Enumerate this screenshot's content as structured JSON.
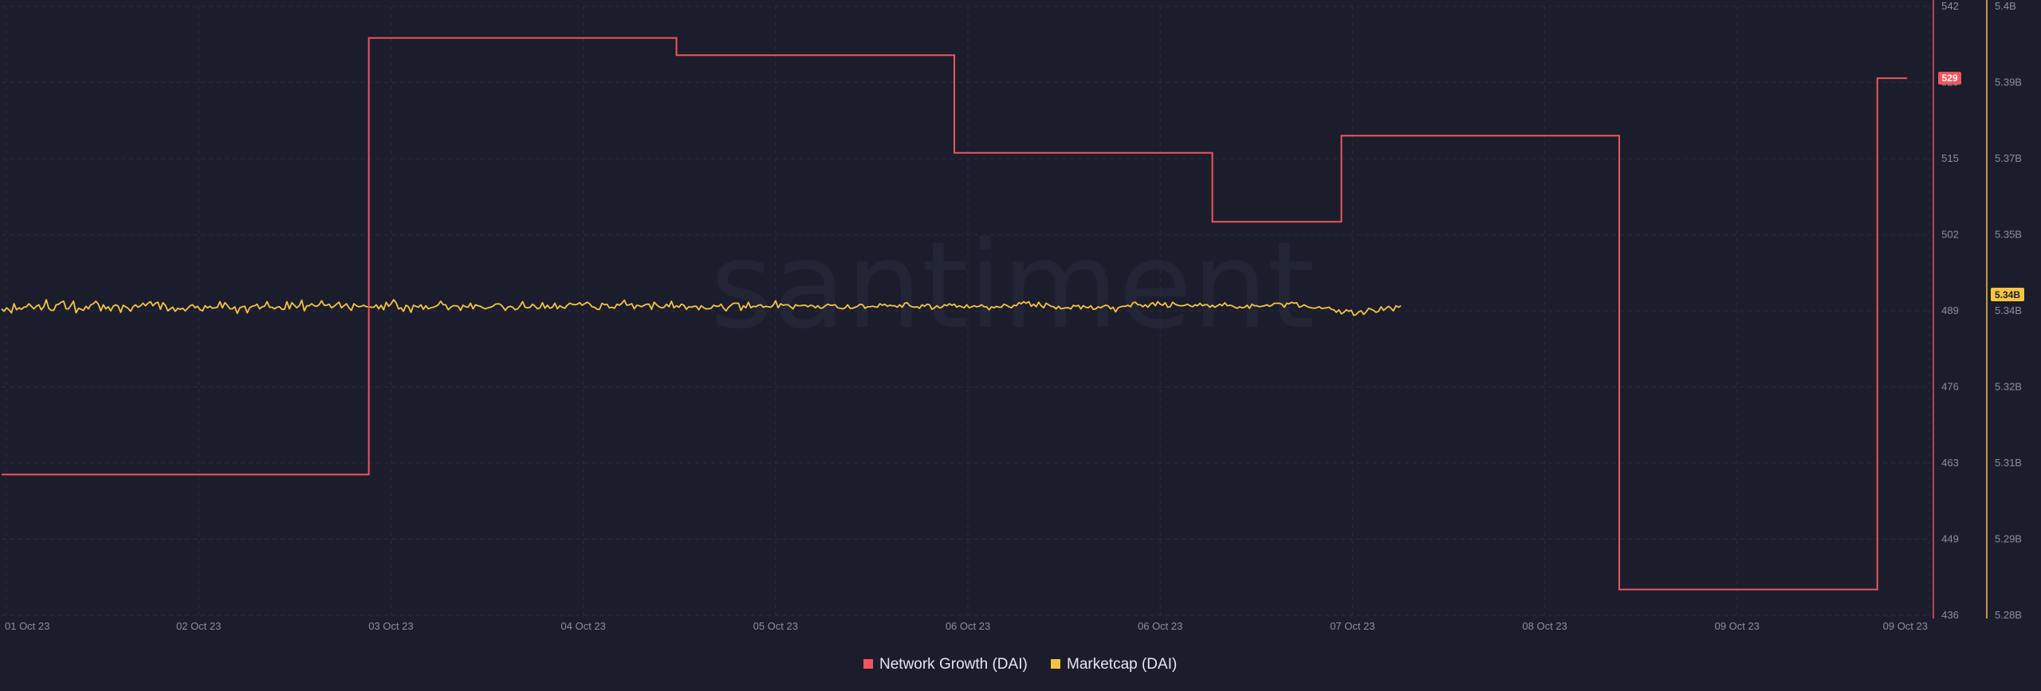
{
  "watermark": "santiment",
  "chart_data": {
    "type": "line",
    "x_tick_labels": [
      "01 Oct 23",
      "02 Oct 23",
      "03 Oct 23",
      "04 Oct 23",
      "05 Oct 23",
      "06 Oct 23",
      "06 Oct 23",
      "07 Oct 23",
      "08 Oct 23",
      "09 Oct 23",
      "09 Oct 23"
    ],
    "x_range": [
      "2023-10-01T00:00",
      "2023-10-09T00:00"
    ],
    "y_left": {
      "ticks": [
        "542",
        "529",
        "515",
        "502",
        "489",
        "476",
        "463",
        "449",
        "436"
      ],
      "range": [
        436,
        542
      ],
      "color": "#f0555c"
    },
    "y_right": {
      "ticks": [
        "5.4B",
        "5.39B",
        "5.37B",
        "5.35B",
        "5.34B",
        "5.32B",
        "5.31B",
        "5.29B",
        "5.28B"
      ],
      "range": [
        5.28,
        5.4
      ],
      "unit": "B",
      "color": "#f5c443"
    },
    "grid": true,
    "legend_position": "bottom-center",
    "current_values": {
      "network_growth": "529",
      "marketcap": "5.34B"
    },
    "series": [
      {
        "name": "Network Growth (DAI)",
        "axis": "left",
        "color": "#f0555c",
        "step": true,
        "points": [
          [
            "2023-10-01T00:00",
            460.5
          ],
          [
            "2023-10-02T13:00",
            536.5
          ],
          [
            "2023-10-03T20:00",
            533.5
          ],
          [
            "2023-10-05T00:00",
            516.5
          ],
          [
            "2023-10-06T02:00",
            504.5
          ],
          [
            "2023-10-06T15:00",
            519.5
          ],
          [
            "2023-10-07T19:00",
            440.5
          ],
          [
            "2023-10-08T21:00",
            529.5
          ],
          [
            "2023-10-09T00:00",
            529.5
          ]
        ]
      },
      {
        "name": "Marketcap (DAI)",
        "axis": "right",
        "color": "#f5c443",
        "step": false,
        "sample_hours": 0.25,
        "values_billion": [
          5.3404,
          5.3399,
          5.3406,
          5.3402,
          5.3396,
          5.3414,
          5.3402,
          5.3406,
          5.3403,
          5.3407,
          5.3408,
          5.3414,
          5.3409,
          5.3404,
          5.3409,
          5.3412,
          5.3402,
          5.3408,
          5.3422,
          5.3405,
          5.3401,
          5.3401,
          5.3412,
          5.3413,
          5.3417,
          5.3419,
          5.3404,
          5.3404,
          5.3411,
          5.3419,
          5.3396,
          5.3405,
          5.3403,
          5.3401,
          5.3409,
          5.3404,
          5.3412,
          5.3414,
          5.3419,
          5.3413,
          5.34,
          5.3412,
          5.3404,
          5.3408,
          5.34,
          5.3409,
          5.3412,
          5.3409,
          5.3397,
          5.3411,
          5.3408,
          5.3405,
          5.3399,
          5.3408,
          5.3412,
          5.3407,
          5.341,
          5.3415,
          5.341,
          5.3415,
          5.3418,
          5.341,
          5.3415,
          5.3417,
          5.3403,
          5.3416,
          5.3411,
          5.34,
          5.3404,
          5.3407,
          5.3399,
          5.3405,
          5.3403,
          5.3405,
          5.34,
          5.3405,
          5.341,
          5.3412,
          5.3406,
          5.3409,
          5.3402,
          5.34,
          5.341,
          5.3406,
          5.3409,
          5.3405,
          5.3406,
          5.3407,
          5.3418,
          5.3406,
          5.3416,
          5.3411,
          5.3404,
          5.3404,
          5.3408,
          5.3395,
          5.3406,
          5.3408,
          5.3409,
          5.3396,
          5.3406,
          5.3409,
          5.341,
          5.3413,
          5.3404,
          5.3408,
          5.3409,
          5.3418,
          5.3407,
          5.3407,
          5.3404,
          5.3407,
          5.3408,
          5.3403,
          5.3403,
          5.3418,
          5.3404,
          5.3416,
          5.3411,
          5.3406,
          5.341,
          5.3421,
          5.34,
          5.341,
          5.341,
          5.3414,
          5.341,
          5.3409,
          5.3412,
          5.342,
          5.3411,
          5.3411,
          5.3413,
          5.3406,
          5.3409,
          5.3413,
          5.3417,
          5.3406,
          5.341,
          5.3414,
          5.3406,
          5.3401,
          5.3414,
          5.341,
          5.3408,
          5.3409,
          5.3411,
          5.3408,
          5.3408,
          5.3407,
          5.3407,
          5.3412,
          5.3404,
          5.3411,
          5.3402,
          5.3417,
          5.3409,
          5.3414,
          5.3422,
          5.3416,
          5.3404,
          5.3406,
          5.3399,
          5.3411,
          5.3408,
          5.3397,
          5.3411,
          5.3409,
          5.3407,
          5.3412,
          5.3403,
          5.341,
          5.3404,
          5.3406,
          5.3407,
          5.3409,
          5.3412,
          5.3419,
          5.3412,
          5.3412,
          5.3402,
          5.3407,
          5.341,
          5.341,
          5.3409,
          5.3401,
          5.3411,
          5.3408,
          5.3407,
          5.3415,
          5.3404,
          5.3412,
          5.341,
          5.3409,
          5.3406,
          5.3404,
          5.3406,
          5.3407,
          5.3409,
          5.3413,
          5.3414,
          5.3413,
          5.3408,
          5.3401,
          5.3407,
          5.3409,
          5.3407,
          5.3402,
          5.3404,
          5.341,
          5.3418,
          5.3407,
          5.3406,
          5.3407,
          5.3413,
          5.3409,
          5.3404,
          5.3406,
          5.3416,
          5.3405,
          5.3411,
          5.3405,
          5.3407,
          5.3415,
          5.3404,
          5.341,
          5.3407,
          5.3405,
          5.3411,
          5.3415,
          5.3413,
          5.3412,
          5.3413,
          5.3416,
          5.3411,
          5.3414,
          5.3417,
          5.3414,
          5.3408,
          5.3407,
          5.3403,
          5.3403,
          5.3415,
          5.3412,
          5.3413,
          5.3406,
          5.3407,
          5.3405,
          5.3413,
          5.3411,
          5.3415,
          5.3421,
          5.3411,
          5.3412,
          5.3414,
          5.3404,
          5.3411,
          5.341,
          5.3408,
          5.3411,
          5.3413,
          5.3413,
          5.3403,
          5.3417,
          5.3412,
          5.3408,
          5.3406,
          5.3407,
          5.3413,
          5.3408,
          5.3419,
          5.3406,
          5.341,
          5.3407,
          5.3413,
          5.3411,
          5.3403,
          5.3408,
          5.3407,
          5.3409,
          5.3409,
          5.3402,
          5.341,
          5.3406,
          5.3404,
          5.3404,
          5.3405,
          5.3411,
          5.3409,
          5.3409,
          5.3413,
          5.3405,
          5.34,
          5.3407,
          5.3411,
          5.3415,
          5.3415,
          5.3415,
          5.3401,
          5.341,
          5.3406,
          5.3417,
          5.3406,
          5.3409,
          5.3408,
          5.3411,
          5.3412,
          5.3407,
          5.3409,
          5.3408,
          5.3407,
          5.3411,
          5.342,
          5.3406,
          5.3414,
          5.3411,
          5.3412,
          5.3412,
          5.3408,
          5.3404,
          5.3412,
          5.341,
          5.341,
          5.3411,
          5.3411,
          5.3408,
          5.3411,
          5.341,
          5.3406,
          5.341,
          5.3405,
          5.3406,
          5.341,
          5.3413,
          5.3411,
          5.3411,
          5.3412,
          5.3406,
          5.3405,
          5.3404,
          5.3406,
          5.3412,
          5.3405,
          5.3405,
          5.3407,
          5.3409,
          5.3413,
          5.3412,
          5.3405,
          5.3408,
          5.3408,
          5.3409,
          5.3408,
          5.3407,
          5.3414,
          5.3411,
          5.3413,
          5.3409,
          5.3411,
          5.341,
          5.341,
          5.3407,
          5.3412,
          5.3407,
          5.3415,
          5.3416,
          5.341,
          5.3408,
          5.3407,
          5.3408,
          5.3405,
          5.3412,
          5.3409,
          5.3413,
          5.3412,
          5.3403,
          5.3406,
          5.341,
          5.3406,
          5.3407,
          5.3412,
          5.341,
          5.3414,
          5.3411,
          5.3413,
          5.3407,
          5.341,
          5.3408,
          5.3406,
          5.3412,
          5.3406,
          5.3408,
          5.341,
          5.3408,
          5.3409,
          5.3412,
          5.3408,
          5.3408,
          5.3402,
          5.3408,
          5.3406,
          5.3409,
          5.3407,
          5.3407,
          5.3413,
          5.3411,
          5.3408,
          5.3406,
          5.3411,
          5.341,
          5.3416,
          5.3414,
          5.3418,
          5.3415,
          5.3418,
          5.3409,
          5.3413,
          5.3408,
          5.3417,
          5.341,
          5.3406,
          5.3415,
          5.3412,
          5.3409,
          5.3408,
          5.3404,
          5.3409,
          5.3404,
          5.3405,
          5.3406,
          5.3406,
          5.3404,
          5.3411,
          5.3409,
          5.3411,
          5.3404,
          5.341,
          5.3407,
          5.3406,
          5.341,
          5.3403,
          5.3404,
          5.3408,
          5.3406,
          5.3409,
          5.3411,
          5.341,
          5.3404,
          5.3407,
          5.3398,
          5.3406,
          5.3408,
          5.3409,
          5.3409,
          5.3411,
          5.3408,
          5.3416,
          5.3417,
          5.3412,
          5.3412,
          5.3408,
          5.3412,
          5.3407,
          5.3413,
          5.3416,
          5.341,
          5.3418,
          5.3413,
          5.3411,
          5.3416,
          5.3407,
          5.3408,
          5.3417,
          5.3413,
          5.3411,
          5.341,
          5.341,
          5.3411,
          5.3413,
          5.341,
          5.3408,
          5.3412,
          5.341,
          5.3415,
          5.341,
          5.3412,
          5.3412,
          5.3407,
          5.3411,
          5.3407,
          5.341,
          5.3413,
          5.341,
          5.3416,
          5.341,
          5.3411,
          5.341,
          5.3407,
          5.3405,
          5.3408,
          5.3406,
          5.3407,
          5.3411,
          5.3405,
          5.3413,
          5.341,
          5.341,
          5.3408,
          5.3409,
          5.341,
          5.3412,
          5.3409,
          5.3411,
          5.3415,
          5.3415,
          5.3415,
          5.3413,
          5.3407,
          5.3415,
          5.3414,
          5.3417,
          5.3415,
          5.3416,
          5.3407,
          5.3409,
          5.3412,
          5.3409,
          5.3407,
          5.3406,
          5.3405,
          5.3406,
          5.3408,
          5.3405,
          5.3405,
          5.3406,
          5.3407,
          5.3403,
          5.3402,
          5.3397,
          5.3402,
          5.3394,
          5.3397,
          5.3402,
          5.3399,
          5.3401,
          5.3391,
          5.3393,
          5.3398,
          5.34,
          5.3393,
          5.3398,
          5.3405,
          5.3403,
          5.3401,
          5.3397,
          5.3399,
          5.3408,
          5.3401,
          5.3405,
          5.3409,
          5.3405,
          5.34,
          5.341,
          5.3407,
          5.341
        ]
      }
    ]
  }
}
